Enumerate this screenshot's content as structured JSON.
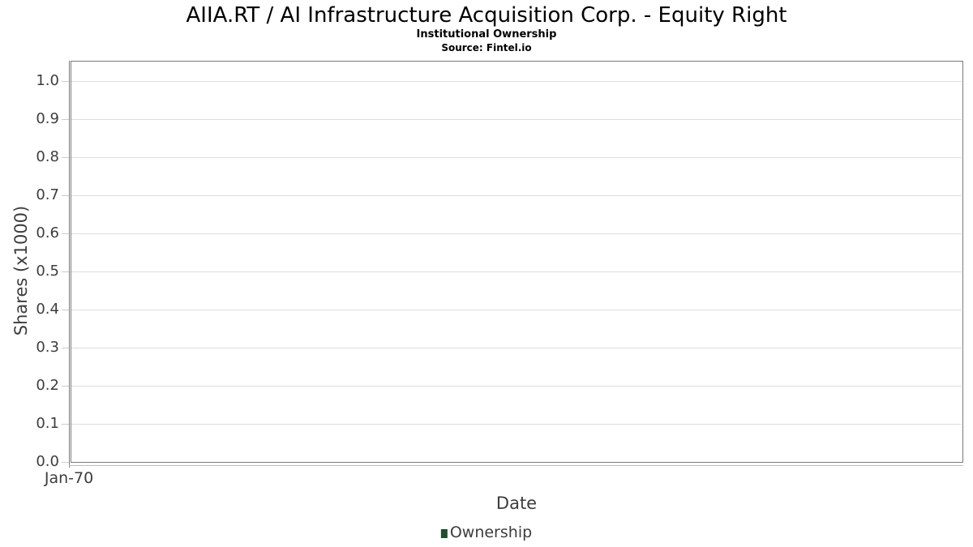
{
  "chart_data": {
    "type": "line",
    "title": "AIIA.RT / AI Infrastructure Acquisition Corp. - Equity Right",
    "subtitle": "Institutional Ownership",
    "source": "Source: Fintel.io",
    "xlabel": "Date",
    "ylabel": "Shares (x1000)",
    "x_ticks": [
      "Jan-70"
    ],
    "y_ticks": [
      "0.0",
      "0.1",
      "0.2",
      "0.3",
      "0.4",
      "0.5",
      "0.6",
      "0.7",
      "0.8",
      "0.9",
      "1.0"
    ],
    "ylim": [
      0.0,
      1.0
    ],
    "grid": true,
    "legend_position": "bottom",
    "legend": [
      {
        "label": "Ownership",
        "color": "#1e4e2c"
      }
    ],
    "series": [
      {
        "name": "Ownership",
        "x": [],
        "y": []
      }
    ]
  },
  "colors": {
    "background": "#ffffff",
    "plot_border": "#7a7a7a",
    "gridline": "#dedede",
    "tick_mark": "#cccccc",
    "axis_text": "#3d3d3d",
    "title_text": "#000000",
    "legend_green": "#1e4e2c",
    "baseline_shadow": "#bdbdbd"
  }
}
